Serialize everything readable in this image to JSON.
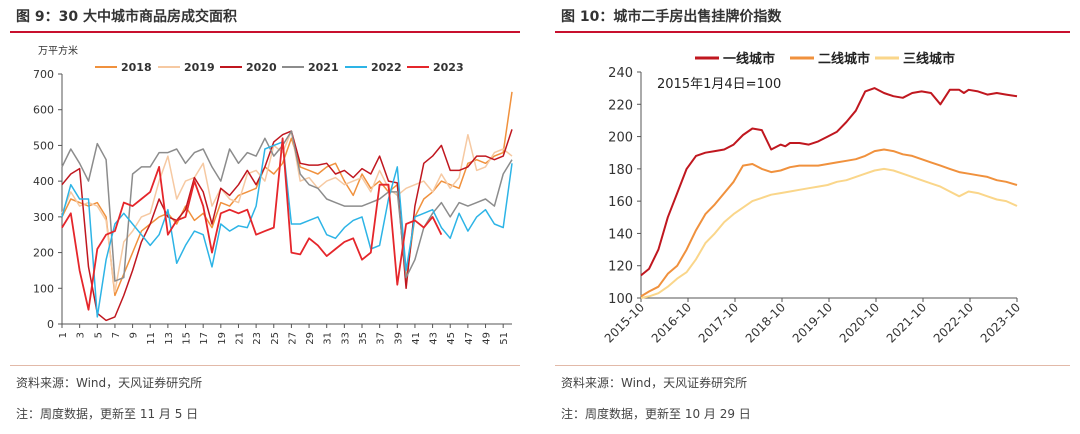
{
  "left": {
    "fig_label": "图 9：30 大中城市商品房成交面积",
    "source": "资料来源：Wind，天风证券研究所",
    "note": "注：周度数据，更新至 11 月 5 日"
  },
  "right": {
    "fig_label": "图 10：城市二手房出售挂牌价指数",
    "source": "资料来源：Wind，天风证券研究所",
    "note": "注：周度数据，更新至 10 月 29 日"
  },
  "colors": {
    "2018": "#f0913d",
    "2019": "#f6c9a2",
    "2020": "#c0171f",
    "2021": "#8c8c8c",
    "2022": "#2db4e6",
    "2023": "#e5262b",
    "tier1": "#c0171f",
    "tier2": "#f0913d",
    "tier3": "#fad68a",
    "accent": "#c8102e"
  },
  "chart_data": [
    {
      "type": "line",
      "unit_label": "万平方米",
      "ylim": [
        0,
        700
      ],
      "yticks": [
        0,
        100,
        200,
        300,
        400,
        500,
        600,
        700
      ],
      "x_tick_labels": [
        "1",
        "3",
        "5",
        "7",
        "9",
        "11",
        "13",
        "15",
        "17",
        "19",
        "21",
        "23",
        "25",
        "27",
        "29",
        "31",
        "33",
        "35",
        "37",
        "39",
        "41",
        "43",
        "45",
        "47",
        "49",
        "51"
      ],
      "legend_position": "top",
      "series": [
        {
          "name": "2018",
          "x": [
            1,
            2,
            3,
            4,
            5,
            6,
            7,
            8,
            9,
            10,
            11,
            12,
            13,
            14,
            15,
            16,
            17,
            18,
            19,
            20,
            21,
            22,
            23,
            24,
            25,
            26,
            27,
            28,
            29,
            30,
            31,
            32,
            33,
            34,
            35,
            36,
            37,
            38,
            39,
            40,
            41,
            42,
            43,
            44,
            45,
            46,
            47,
            48,
            49,
            50,
            51,
            52
          ],
          "values": [
            300,
            350,
            340,
            330,
            340,
            300,
            80,
            140,
            200,
            260,
            280,
            300,
            310,
            280,
            330,
            290,
            310,
            270,
            340,
            330,
            360,
            370,
            380,
            440,
            420,
            450,
            520,
            440,
            430,
            420,
            440,
            450,
            400,
            360,
            420,
            380,
            400,
            370,
            390,
            120,
            300,
            350,
            370,
            400,
            390,
            380,
            450,
            460,
            450,
            470,
            480,
            650
          ]
        },
        {
          "name": "2019",
          "x": [
            1,
            2,
            3,
            4,
            5,
            6,
            7,
            8,
            9,
            10,
            11,
            12,
            13,
            14,
            15,
            16,
            17,
            18,
            19,
            20,
            21,
            22,
            23,
            24,
            25,
            26,
            27,
            28,
            29,
            30,
            31,
            32,
            33,
            34,
            35,
            36,
            37,
            38,
            39,
            40,
            41,
            42,
            43,
            44,
            45,
            46,
            47,
            48,
            49,
            50,
            51,
            52
          ],
          "values": [
            310,
            370,
            330,
            340,
            330,
            290,
            90,
            230,
            260,
            300,
            310,
            400,
            470,
            350,
            400,
            410,
            450,
            330,
            380,
            350,
            340,
            420,
            430,
            400,
            500,
            480,
            540,
            400,
            410,
            380,
            400,
            410,
            390,
            400,
            410,
            370,
            430,
            380,
            360,
            380,
            390,
            400,
            370,
            420,
            380,
            410,
            530,
            430,
            440,
            480,
            490,
            470
          ]
        },
        {
          "name": "2020",
          "x": [
            1,
            2,
            3,
            4,
            5,
            6,
            7,
            8,
            9,
            10,
            11,
            12,
            13,
            14,
            15,
            16,
            17,
            18,
            19,
            20,
            21,
            22,
            23,
            24,
            25,
            26,
            27,
            28,
            29,
            30,
            31,
            32,
            33,
            34,
            35,
            36,
            37,
            38,
            39,
            40,
            41,
            42,
            43,
            44,
            45,
            46,
            47,
            48,
            49,
            50,
            51,
            52
          ],
          "values": [
            390,
            420,
            435,
            160,
            30,
            10,
            20,
            80,
            150,
            230,
            280,
            350,
            300,
            290,
            320,
            410,
            370,
            280,
            380,
            360,
            390,
            430,
            390,
            440,
            510,
            530,
            540,
            450,
            445,
            445,
            450,
            420,
            430,
            410,
            435,
            420,
            470,
            400,
            395,
            100,
            330,
            450,
            470,
            500,
            430,
            430,
            440,
            470,
            470,
            460,
            470,
            545
          ]
        },
        {
          "name": "2021",
          "x": [
            1,
            2,
            3,
            4,
            5,
            6,
            7,
            8,
            9,
            10,
            11,
            12,
            13,
            14,
            15,
            16,
            17,
            18,
            19,
            20,
            21,
            22,
            23,
            24,
            25,
            26,
            27,
            28,
            29,
            30,
            31,
            32,
            33,
            34,
            35,
            36,
            37,
            38,
            39,
            40,
            41,
            42,
            43,
            44,
            45,
            46,
            47,
            48,
            49,
            50,
            51,
            52
          ],
          "values": [
            440,
            490,
            450,
            400,
            505,
            460,
            120,
            130,
            420,
            440,
            440,
            480,
            480,
            490,
            450,
            480,
            490,
            440,
            400,
            490,
            450,
            480,
            470,
            520,
            470,
            500,
            540,
            420,
            390,
            380,
            350,
            340,
            330,
            330,
            330,
            340,
            350,
            370,
            370,
            130,
            180,
            270,
            310,
            340,
            300,
            340,
            330,
            340,
            350,
            330,
            420,
            460
          ]
        },
        {
          "name": "2022",
          "x": [
            1,
            2,
            3,
            4,
            5,
            6,
            7,
            8,
            9,
            10,
            11,
            12,
            13,
            14,
            15,
            16,
            17,
            18,
            19,
            20,
            21,
            22,
            23,
            24,
            25,
            26,
            27,
            28,
            29,
            30,
            31,
            32,
            33,
            34,
            35,
            36,
            37,
            38,
            39,
            40,
            41,
            42,
            43,
            44,
            45,
            46,
            47,
            48,
            49,
            50,
            51,
            52
          ],
          "values": [
            300,
            390,
            350,
            350,
            20,
            180,
            280,
            310,
            280,
            250,
            220,
            250,
            320,
            170,
            220,
            260,
            250,
            160,
            280,
            260,
            275,
            270,
            330,
            490,
            500,
            510,
            280,
            280,
            290,
            300,
            250,
            240,
            270,
            290,
            300,
            210,
            220,
            350,
            440,
            150,
            300,
            310,
            320,
            270,
            240,
            310,
            260,
            300,
            320,
            280,
            270,
            450
          ]
        },
        {
          "name": "2023",
          "x": [
            1,
            2,
            3,
            4,
            5,
            6,
            7,
            8,
            9,
            10,
            11,
            12,
            13,
            14,
            15,
            16,
            17,
            18,
            19,
            20,
            21,
            22,
            23,
            24,
            25,
            26,
            27,
            28,
            29,
            30,
            31,
            32,
            33,
            34,
            35,
            36,
            37,
            38,
            39,
            40,
            41,
            42,
            43,
            44
          ],
          "values": [
            270,
            310,
            150,
            40,
            210,
            250,
            260,
            340,
            330,
            350,
            370,
            440,
            250,
            290,
            300,
            400,
            330,
            200,
            310,
            320,
            310,
            320,
            250,
            260,
            270,
            520,
            200,
            195,
            240,
            220,
            190,
            210,
            230,
            240,
            180,
            200,
            390,
            390,
            110,
            280,
            290,
            270,
            300,
            250
          ]
        }
      ]
    },
    {
      "type": "line",
      "ylim": [
        100,
        240
      ],
      "yticks": [
        100,
        120,
        140,
        160,
        180,
        200,
        220,
        240
      ],
      "x_tick_labels": [
        "2015-10",
        "2016-10",
        "2017-10",
        "2018-10",
        "2019-10",
        "2020-10",
        "2021-10",
        "2022-10",
        "2023-10"
      ],
      "annotation": "2015年1月4日=100",
      "legend_position": "top",
      "series": [
        {
          "name": "一线城市",
          "x": [
            2015.83,
            2016.0,
            2016.2,
            2016.4,
            2016.6,
            2016.8,
            2017.0,
            2017.2,
            2017.4,
            2017.6,
            2017.8,
            2018.0,
            2018.2,
            2018.4,
            2018.6,
            2018.8,
            2018.9,
            2019.0,
            2019.2,
            2019.4,
            2019.6,
            2019.8,
            2020.0,
            2020.2,
            2020.4,
            2020.6,
            2020.8,
            2021.0,
            2021.2,
            2021.4,
            2021.6,
            2021.8,
            2022.0,
            2022.2,
            2022.4,
            2022.6,
            2022.7,
            2022.8,
            2023.0,
            2023.2,
            2023.4,
            2023.6,
            2023.83
          ],
          "values": [
            114,
            118,
            130,
            150,
            165,
            180,
            188,
            190,
            191,
            192,
            195,
            201,
            205,
            204,
            192,
            195,
            194,
            196,
            196,
            195,
            197,
            200,
            203,
            209,
            216,
            228,
            230,
            227,
            225,
            224,
            227,
            228,
            227,
            220,
            229,
            229,
            227,
            229,
            228,
            226,
            227,
            226,
            225
          ]
        },
        {
          "name": "二线城市",
          "x": [
            2015.83,
            2016.0,
            2016.2,
            2016.4,
            2016.6,
            2016.8,
            2017.0,
            2017.2,
            2017.4,
            2017.6,
            2017.8,
            2018.0,
            2018.2,
            2018.4,
            2018.6,
            2018.8,
            2019.0,
            2019.2,
            2019.4,
            2019.6,
            2019.8,
            2020.0,
            2020.2,
            2020.4,
            2020.6,
            2020.8,
            2021.0,
            2021.2,
            2021.4,
            2021.6,
            2021.8,
            2022.0,
            2022.2,
            2022.4,
            2022.6,
            2022.8,
            2023.0,
            2023.2,
            2023.4,
            2023.6,
            2023.83
          ],
          "values": [
            101,
            104,
            107,
            115,
            120,
            130,
            142,
            152,
            158,
            165,
            172,
            182,
            183,
            180,
            178,
            179,
            181,
            182,
            182,
            182,
            183,
            184,
            185,
            186,
            188,
            191,
            192,
            191,
            189,
            188,
            186,
            184,
            182,
            180,
            178,
            177,
            176,
            175,
            173,
            172,
            170
          ]
        },
        {
          "name": "三线城市",
          "x": [
            2015.83,
            2016.0,
            2016.2,
            2016.4,
            2016.6,
            2016.8,
            2017.0,
            2017.2,
            2017.4,
            2017.6,
            2017.8,
            2018.0,
            2018.2,
            2018.4,
            2018.6,
            2018.8,
            2019.0,
            2019.2,
            2019.4,
            2019.6,
            2019.8,
            2020.0,
            2020.2,
            2020.4,
            2020.6,
            2020.8,
            2021.0,
            2021.2,
            2021.4,
            2021.6,
            2021.8,
            2022.0,
            2022.2,
            2022.4,
            2022.6,
            2022.8,
            2023.0,
            2023.2,
            2023.4,
            2023.6,
            2023.83
          ],
          "values": [
            100,
            101,
            103,
            107,
            112,
            116,
            124,
            134,
            140,
            147,
            152,
            156,
            160,
            162,
            164,
            165,
            166,
            167,
            168,
            169,
            170,
            172,
            173,
            175,
            177,
            179,
            180,
            179,
            177,
            175,
            173,
            171,
            169,
            166,
            163,
            166,
            165,
            163,
            161,
            160,
            157
          ]
        }
      ]
    }
  ]
}
